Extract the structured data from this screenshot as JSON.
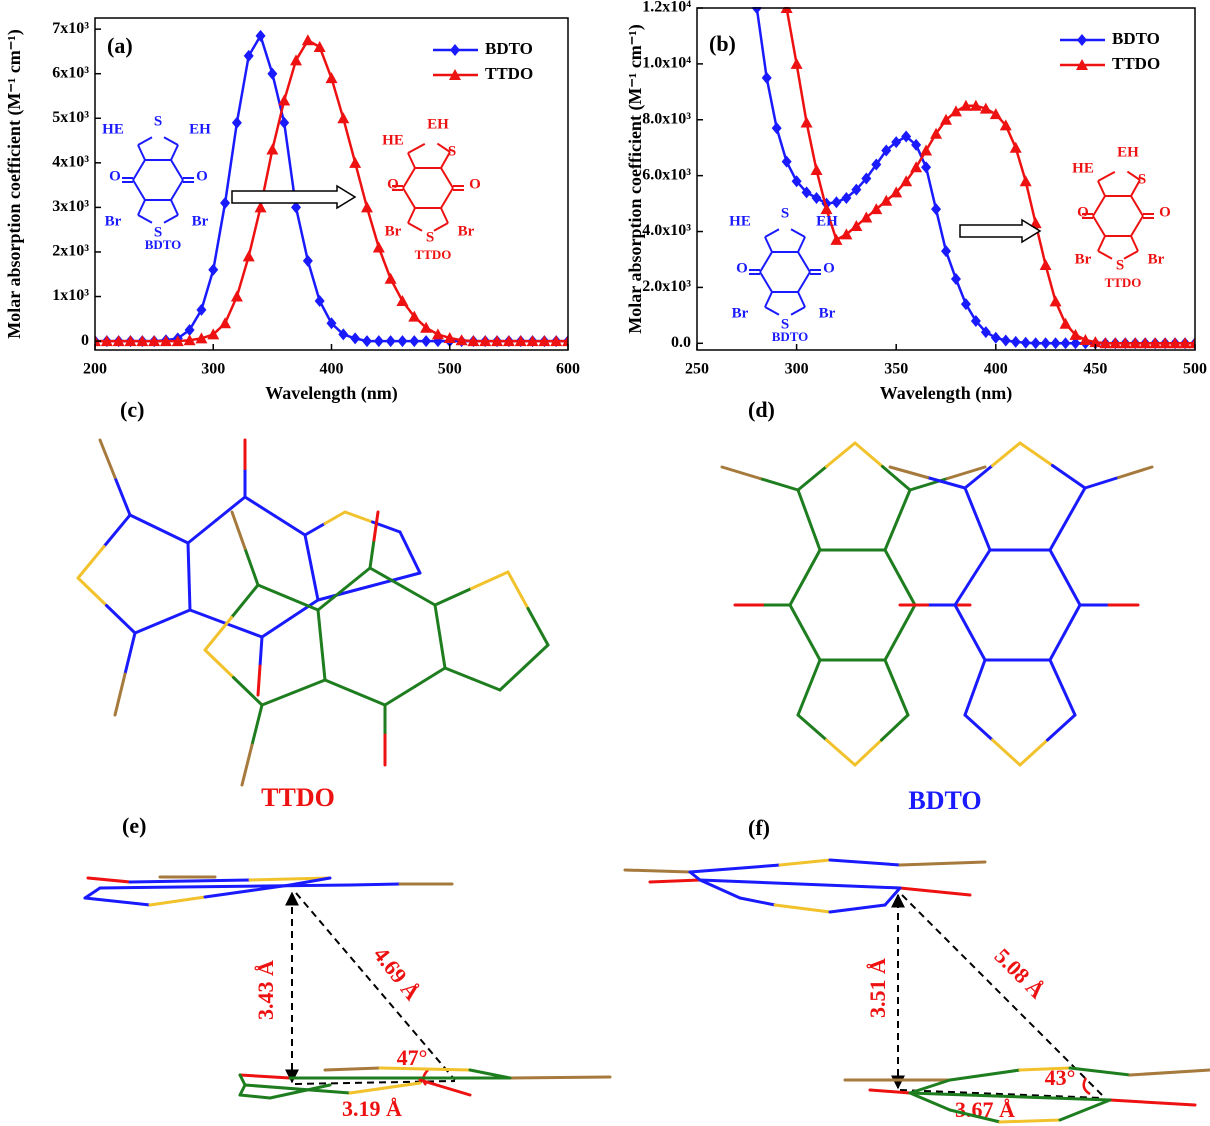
{
  "chart_data": [
    {
      "type": "line",
      "xlabel": "Wavelength (nm)",
      "ylabel": "Molar absorption coefficient (M⁻¹ cm⁻¹)",
      "x": [
        200,
        210,
        220,
        230,
        240,
        250,
        260,
        270,
        280,
        290,
        300,
        310,
        320,
        330,
        340,
        350,
        360,
        370,
        380,
        390,
        400,
        410,
        420,
        430,
        440,
        450,
        460,
        470,
        480,
        490,
        500,
        510,
        520,
        530,
        540,
        550,
        560,
        570,
        580,
        590,
        600
      ],
      "series": [
        {
          "name": "BDTO",
          "color": "#1a1aff",
          "marker": "diamond",
          "values": [
            0,
            0,
            0,
            0,
            0,
            0,
            20,
            60,
            250,
            700,
            1600,
            3100,
            4900,
            6400,
            6850,
            6000,
            4900,
            3000,
            1800,
            900,
            400,
            150,
            60,
            0,
            0,
            0,
            0,
            0,
            0,
            0,
            0,
            0,
            0,
            0,
            0,
            0,
            0,
            0,
            0,
            0,
            0
          ]
        },
        {
          "name": "TTDO",
          "color": "#ee1111",
          "marker": "triangle",
          "values": [
            0,
            0,
            0,
            0,
            0,
            0,
            0,
            0,
            20,
            60,
            150,
            400,
            1000,
            1900,
            3000,
            4300,
            5400,
            6300,
            6750,
            6600,
            5900,
            5000,
            4000,
            3000,
            2100,
            1400,
            900,
            550,
            300,
            150,
            70,
            20,
            0,
            0,
            0,
            0,
            0,
            0,
            0,
            0,
            0
          ]
        }
      ],
      "xlim": [
        200,
        600
      ],
      "xticks": [
        200,
        300,
        400,
        500,
        600
      ],
      "ylim": [
        -200,
        7250
      ],
      "yticks": [
        0,
        {
          "value": 1000,
          "label": "1x10³"
        },
        {
          "value": 2000,
          "label": "2x10³"
        },
        {
          "value": 3000,
          "label": "3x10³"
        },
        {
          "value": 4000,
          "label": "4x10³"
        },
        {
          "value": 5000,
          "label": "5x10³"
        },
        {
          "value": 6000,
          "label": "6x10³"
        },
        {
          "value": 7000,
          "label": "7x10³"
        }
      ],
      "grid": false,
      "legend": "upper right",
      "annotations": [
        "(a)",
        "HE",
        "S",
        "EH",
        "O",
        "O",
        "Br",
        "S",
        "Br",
        "BDTO",
        "EH",
        "HE",
        "S",
        "O",
        "O",
        "Br",
        "S",
        "Br",
        "TTDO"
      ]
    },
    {
      "type": "line",
      "xlabel": "Wavelength (nm)",
      "ylabel": "Molar absorption coefficient (M⁻¹ cm⁻¹)",
      "x": [
        280,
        285,
        290,
        295,
        300,
        305,
        310,
        315,
        320,
        325,
        330,
        335,
        340,
        345,
        350,
        355,
        360,
        365,
        370,
        375,
        380,
        385,
        390,
        395,
        400,
        405,
        410,
        415,
        420,
        425,
        430,
        435,
        440,
        445,
        450,
        455,
        460,
        465,
        470,
        475,
        480,
        485,
        490,
        495,
        500
      ],
      "series": [
        {
          "name": "BDTO",
          "color": "#1a1aff",
          "marker": "diamond",
          "values": [
            12000,
            9500,
            7700,
            6500,
            5800,
            5400,
            5200,
            5000,
            5050,
            5200,
            5500,
            5900,
            6400,
            6900,
            7200,
            7400,
            7100,
            6300,
            4800,
            3300,
            2300,
            1400,
            800,
            400,
            200,
            100,
            50,
            20,
            0,
            0,
            0,
            0,
            0,
            0,
            0,
            0,
            0,
            0,
            0,
            0,
            0,
            0,
            0,
            0,
            0
          ]
        },
        {
          "name": "TTDO",
          "color": "#ee1111",
          "marker": "triangle",
          "values": [
            null,
            null,
            null,
            12000,
            10000,
            7900,
            6200,
            4800,
            3700,
            3900,
            4200,
            4500,
            4800,
            5100,
            5400,
            5800,
            6300,
            6900,
            7500,
            8000,
            8300,
            8500,
            8500,
            8400,
            8200,
            7800,
            7000,
            5800,
            4300,
            2800,
            1500,
            700,
            300,
            120,
            40,
            0,
            0,
            0,
            0,
            0,
            0,
            0,
            0,
            0,
            0
          ]
        }
      ],
      "xlim": [
        250,
        500
      ],
      "xticks": [
        250,
        300,
        350,
        400,
        450,
        500
      ],
      "ylim": [
        -240,
        12000
      ],
      "yticks": [
        {
          "value": 0,
          "label": "0.0"
        },
        {
          "value": 2000,
          "label": "2.0x10³"
        },
        {
          "value": 4000,
          "label": "4.0x10³"
        },
        {
          "value": 6000,
          "label": "6.0x10³"
        },
        {
          "value": 8000,
          "label": "8.0x10³"
        },
        {
          "value": 10000,
          "label": "1.0x10⁴"
        },
        {
          "value": 12000,
          "label": "1.2x10⁴"
        }
      ],
      "grid": false,
      "legend": "upper right",
      "annotations": [
        "(b)",
        "HE",
        "S",
        "EH",
        "O",
        "O",
        "Br",
        "S",
        "Br",
        "BDTO",
        "EH",
        "HE",
        "S",
        "O",
        "O",
        "Br",
        "S",
        "Br",
        "TTDO"
      ]
    }
  ],
  "panels": {
    "c": {
      "label": "(c)",
      "name": "TTDO"
    },
    "d": {
      "label": "(d)",
      "name": "BDTO"
    },
    "e": {
      "label": "(e)",
      "vertical": "3.43 Å",
      "diagonal": "4.69 Å",
      "angle": "47°",
      "horizontal": "3.19 Å"
    },
    "f": {
      "label": "(f)",
      "vertical": "3.51 Å",
      "diagonal": "5.08 Å",
      "angle": "43°",
      "horizontal": "3.67 Å"
    }
  }
}
